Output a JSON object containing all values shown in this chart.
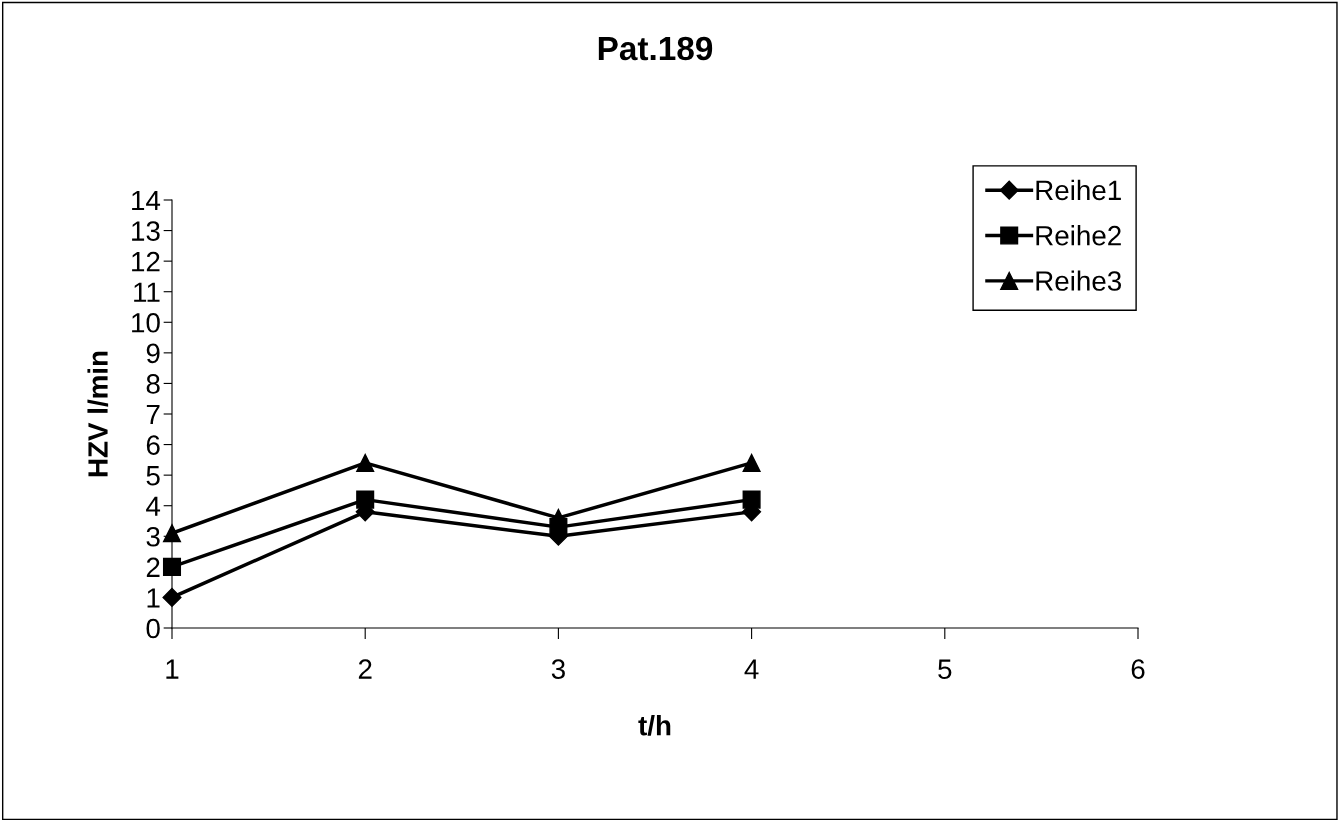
{
  "chart_data": {
    "type": "line",
    "title": "Pat.189",
    "xlabel": "t/h",
    "ylabel": "HZV l/min",
    "x": [
      1,
      2,
      3,
      4
    ],
    "series": [
      {
        "name": "Reihe1",
        "color": "#000000",
        "marker": "diamond",
        "values": [
          1.0,
          3.8,
          3.0,
          3.8
        ]
      },
      {
        "name": "Reihe2",
        "color": "#000000",
        "marker": "square",
        "values": [
          2.0,
          4.2,
          3.3,
          4.2
        ]
      },
      {
        "name": "Reihe3",
        "color": "#000000",
        "marker": "triangle",
        "values": [
          3.1,
          5.4,
          3.6,
          5.4
        ]
      }
    ],
    "xlim": [
      1,
      6
    ],
    "xticks": [
      1,
      2,
      3,
      4,
      5,
      6
    ],
    "ylim": [
      0,
      14
    ],
    "yticks": [
      0,
      1,
      2,
      3,
      4,
      5,
      6,
      7,
      8,
      9,
      10,
      11,
      12,
      13,
      14
    ],
    "grid": false,
    "legend": "top right",
    "line_style": "solid"
  }
}
